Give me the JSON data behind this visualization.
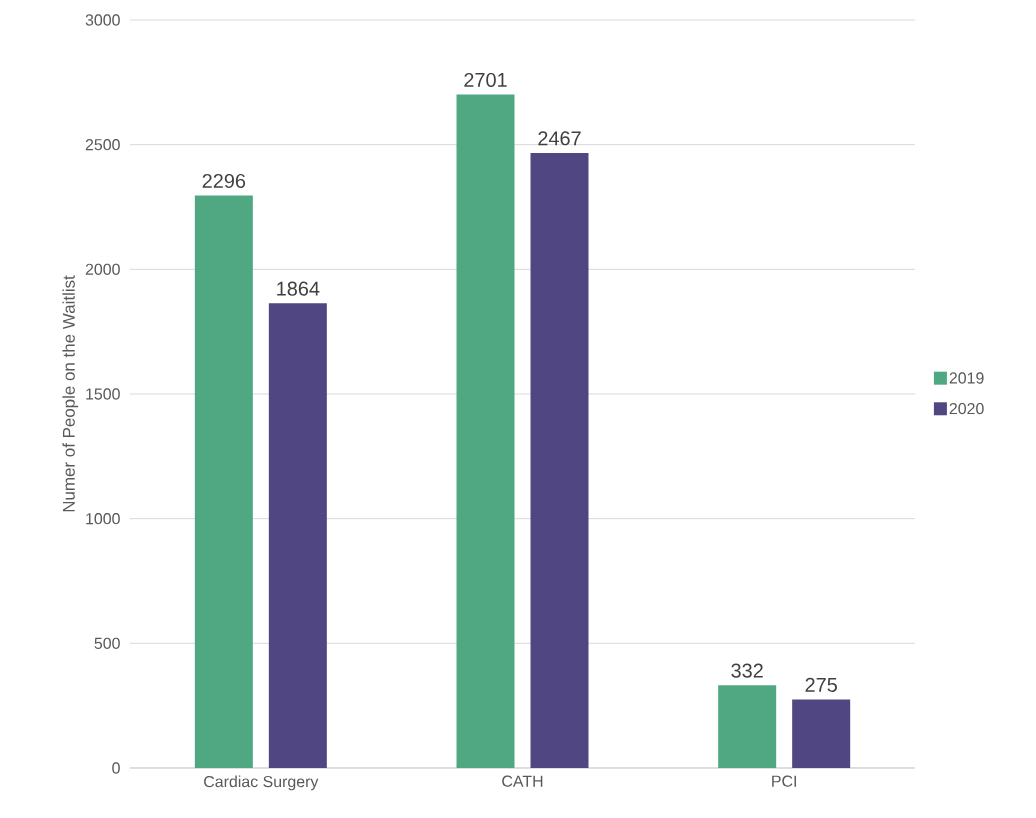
{
  "chart_data": {
    "type": "bar",
    "ylabel": "Numer of People on the Waitlist",
    "categories": [
      "Cardiac Surgery",
      "CATH",
      "PCI"
    ],
    "series": [
      {
        "name": "2019",
        "color": "#4fa882",
        "values": [
          2296,
          2701,
          332
        ]
      },
      {
        "name": "2020",
        "color": "#4f4682",
        "values": [
          1864,
          2467,
          275
        ]
      }
    ],
    "ylim": [
      0,
      3000
    ],
    "yticks": [
      0,
      500,
      1000,
      1500,
      2000,
      2500,
      3000
    ],
    "grid": "y",
    "legend": "right",
    "data_labels": true
  }
}
